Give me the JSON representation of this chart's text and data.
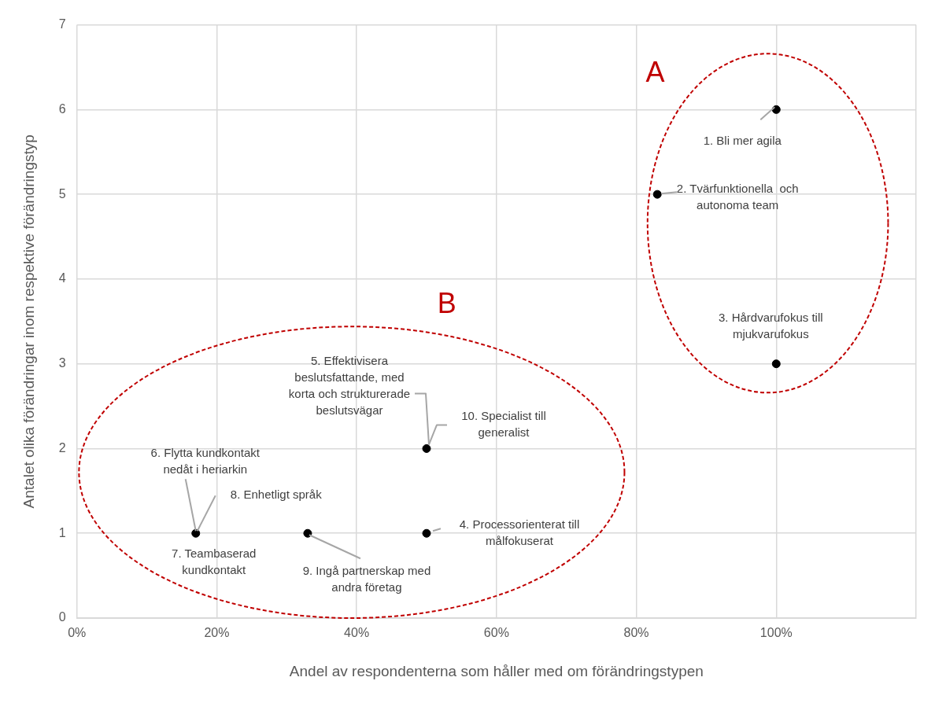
{
  "chart_data": {
    "type": "scatter",
    "xlabel": "Andel av respondenterna som håller med om förändringstypen",
    "ylabel": "Antalet olika förändringar inom respektive förändringstyp",
    "x": [
      100,
      83,
      100,
      50,
      50,
      17,
      33
    ],
    "values": [
      6,
      5,
      3,
      1,
      2,
      1,
      1
    ],
    "color": "#000000",
    "marker": "circle",
    "grid": true,
    "legend": false,
    "xlim": [
      0,
      120
    ],
    "xticks": [
      {
        "value": 0,
        "label": "0%"
      },
      {
        "value": 20,
        "label": "20%"
      },
      {
        "value": 40,
        "label": "40%"
      },
      {
        "value": 60,
        "label": "60%"
      },
      {
        "value": 80,
        "label": "80%"
      },
      {
        "value": 100,
        "label": "100%"
      },
      {
        "value": 120,
        "label": null
      }
    ],
    "ylim": [
      0,
      7
    ],
    "yticks": [
      0,
      1,
      2,
      3,
      4,
      5,
      6,
      7
    ],
    "annotations": [
      {
        "text": "1. Bli mer agila",
        "x": 100,
        "y": 6
      },
      {
        "text": "2. Tvärfunktionella  och\nautonoma team",
        "x": 83,
        "y": 5
      },
      {
        "text": "3. Hårdvarufokus till\nmjukvarufokus",
        "x": 100,
        "y": 3
      },
      {
        "text": "4. Processorienterat till\nmålfokuserat",
        "x": 50,
        "y": 1
      },
      {
        "text": "5. Effektivisera\nbeslutsfattande, med\nkorta och strukturerade\nbeslutsvägar",
        "x": 50,
        "y": 2
      },
      {
        "text": "6. Flytta kundkontakt\nnedåt i heriarkin",
        "x": 17,
        "y": 1
      },
      {
        "text": "7. Teambaserad\nkundkontakt",
        "x": 17,
        "y": 1
      },
      {
        "text": "8. Enhetligt språk",
        "x": 17,
        "y": 1
      },
      {
        "text": "9. Ingå partnerskap med\nandra företag",
        "x": 33,
        "y": 1
      },
      {
        "text": "10. Specialist till\ngeneralist",
        "x": 50,
        "y": 2
      },
      "A",
      "B"
    ]
  }
}
